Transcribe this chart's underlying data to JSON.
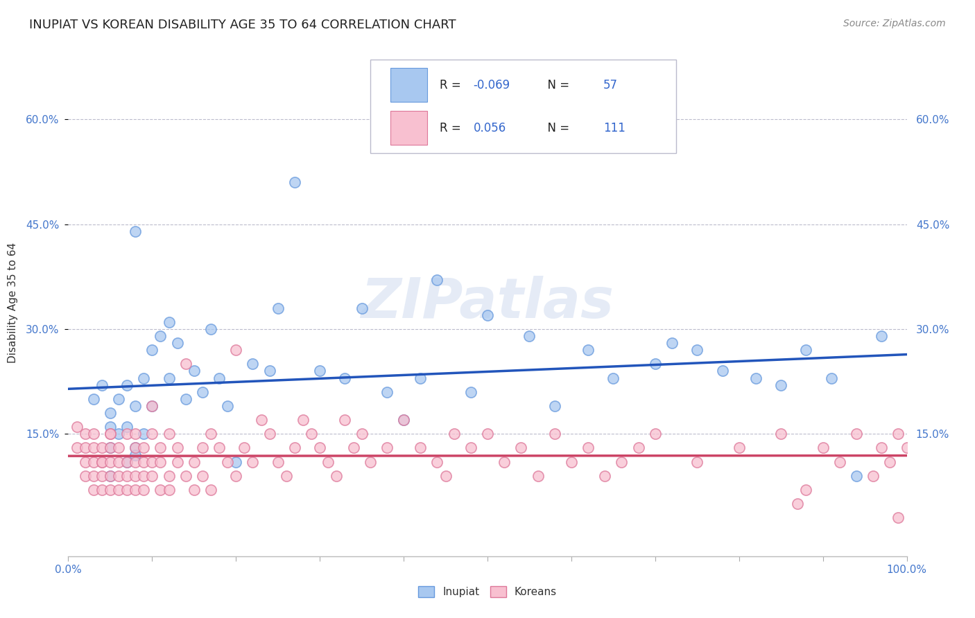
{
  "title": "INUPIAT VS KOREAN DISABILITY AGE 35 TO 64 CORRELATION CHART",
  "source": "Source: ZipAtlas.com",
  "ylabel": "Disability Age 35 to 64",
  "xlim": [
    0,
    1.0
  ],
  "ylim": [
    -0.025,
    0.7
  ],
  "xticks": [
    0.0,
    0.1,
    0.2,
    0.3,
    0.4,
    0.5,
    0.6,
    0.7,
    0.8,
    0.9,
    1.0
  ],
  "xticklabels": [
    "0.0%",
    "",
    "",
    "",
    "",
    "",
    "",
    "",
    "",
    "",
    "100.0%"
  ],
  "ytick_positions": [
    0.15,
    0.3,
    0.45,
    0.6
  ],
  "yticklabels": [
    "15.0%",
    "30.0%",
    "45.0%",
    "60.0%"
  ],
  "inupiat_color": "#A8C8F0",
  "inupiat_edge_color": "#6699DD",
  "korean_color": "#F8C0D0",
  "korean_edge_color": "#DD7799",
  "inupiat_line_color": "#2255BB",
  "korean_line_color": "#CC4466",
  "inupiat_R": -0.069,
  "inupiat_N": 57,
  "korean_R": 0.056,
  "korean_N": 111,
  "watermark_text": "ZIPatlas",
  "legend_box_color": "#CCCCDD",
  "inupiat_scatter_x": [
    0.03,
    0.04,
    0.05,
    0.05,
    0.05,
    0.05,
    0.06,
    0.06,
    0.07,
    0.07,
    0.07,
    0.08,
    0.08,
    0.08,
    0.08,
    0.09,
    0.09,
    0.1,
    0.1,
    0.11,
    0.12,
    0.12,
    0.13,
    0.14,
    0.15,
    0.16,
    0.17,
    0.18,
    0.19,
    0.2,
    0.22,
    0.24,
    0.25,
    0.27,
    0.3,
    0.33,
    0.35,
    0.38,
    0.4,
    0.42,
    0.44,
    0.48,
    0.5,
    0.55,
    0.58,
    0.62,
    0.65,
    0.7,
    0.72,
    0.75,
    0.78,
    0.82,
    0.85,
    0.88,
    0.91,
    0.94,
    0.97
  ],
  "inupiat_scatter_y": [
    0.2,
    0.22,
    0.16,
    0.18,
    0.13,
    0.09,
    0.2,
    0.15,
    0.11,
    0.16,
    0.22,
    0.44,
    0.19,
    0.13,
    0.12,
    0.23,
    0.15,
    0.19,
    0.27,
    0.29,
    0.31,
    0.23,
    0.28,
    0.2,
    0.24,
    0.21,
    0.3,
    0.23,
    0.19,
    0.11,
    0.25,
    0.24,
    0.33,
    0.51,
    0.24,
    0.23,
    0.33,
    0.21,
    0.17,
    0.23,
    0.37,
    0.21,
    0.32,
    0.29,
    0.19,
    0.27,
    0.23,
    0.25,
    0.28,
    0.27,
    0.24,
    0.23,
    0.22,
    0.27,
    0.23,
    0.09,
    0.29
  ],
  "korean_scatter_x": [
    0.01,
    0.01,
    0.02,
    0.02,
    0.02,
    0.02,
    0.03,
    0.03,
    0.03,
    0.03,
    0.03,
    0.04,
    0.04,
    0.04,
    0.04,
    0.04,
    0.05,
    0.05,
    0.05,
    0.05,
    0.05,
    0.05,
    0.06,
    0.06,
    0.06,
    0.06,
    0.07,
    0.07,
    0.07,
    0.07,
    0.08,
    0.08,
    0.08,
    0.08,
    0.08,
    0.09,
    0.09,
    0.09,
    0.09,
    0.1,
    0.1,
    0.1,
    0.1,
    0.11,
    0.11,
    0.11,
    0.12,
    0.12,
    0.12,
    0.13,
    0.13,
    0.14,
    0.14,
    0.15,
    0.15,
    0.16,
    0.16,
    0.17,
    0.17,
    0.18,
    0.19,
    0.2,
    0.2,
    0.21,
    0.22,
    0.23,
    0.24,
    0.25,
    0.26,
    0.27,
    0.28,
    0.29,
    0.3,
    0.31,
    0.32,
    0.33,
    0.34,
    0.35,
    0.36,
    0.38,
    0.4,
    0.42,
    0.44,
    0.45,
    0.46,
    0.48,
    0.5,
    0.52,
    0.54,
    0.56,
    0.58,
    0.6,
    0.62,
    0.64,
    0.66,
    0.68,
    0.7,
    0.75,
    0.8,
    0.85,
    0.87,
    0.88,
    0.9,
    0.92,
    0.94,
    0.96,
    0.97,
    0.98,
    0.99,
    1.0,
    0.99
  ],
  "korean_scatter_y": [
    0.16,
    0.13,
    0.15,
    0.11,
    0.13,
    0.09,
    0.11,
    0.15,
    0.09,
    0.13,
    0.07,
    0.11,
    0.09,
    0.13,
    0.07,
    0.11,
    0.15,
    0.09,
    0.11,
    0.13,
    0.07,
    0.15,
    0.11,
    0.09,
    0.13,
    0.07,
    0.11,
    0.09,
    0.15,
    0.07,
    0.11,
    0.09,
    0.13,
    0.07,
    0.15,
    0.11,
    0.09,
    0.13,
    0.07,
    0.15,
    0.11,
    0.09,
    0.19,
    0.07,
    0.13,
    0.11,
    0.09,
    0.15,
    0.07,
    0.11,
    0.13,
    0.09,
    0.25,
    0.07,
    0.11,
    0.13,
    0.09,
    0.15,
    0.07,
    0.13,
    0.11,
    0.09,
    0.27,
    0.13,
    0.11,
    0.17,
    0.15,
    0.11,
    0.09,
    0.13,
    0.17,
    0.15,
    0.13,
    0.11,
    0.09,
    0.17,
    0.13,
    0.15,
    0.11,
    0.13,
    0.17,
    0.13,
    0.11,
    0.09,
    0.15,
    0.13,
    0.15,
    0.11,
    0.13,
    0.09,
    0.15,
    0.11,
    0.13,
    0.09,
    0.11,
    0.13,
    0.15,
    0.11,
    0.13,
    0.15,
    0.05,
    0.07,
    0.13,
    0.11,
    0.15,
    0.09,
    0.13,
    0.11,
    0.15,
    0.13,
    0.03
  ]
}
